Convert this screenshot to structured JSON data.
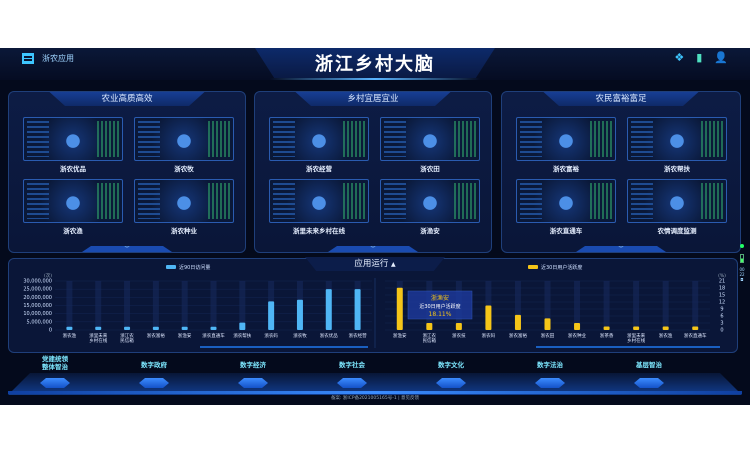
{
  "header": {
    "app_label": "浙农应用",
    "title": "浙江乡村大脑",
    "icons": [
      "network-icon",
      "tablet-icon",
      "user-icon"
    ]
  },
  "panels": [
    {
      "title": "农业高质高效",
      "cards": [
        "浙农优品",
        "浙农牧",
        "浙农渔",
        "浙农种业"
      ]
    },
    {
      "title": "乡村宜居宜业",
      "cards": [
        "浙农经营",
        "浙农田",
        "浙里未来乡村在线",
        "浙渔安"
      ]
    },
    {
      "title": "农民富裕富足",
      "cards": [
        "浙农富裕",
        "浙农帮扶",
        "浙农直通车",
        "农情调度监测"
      ]
    }
  ],
  "section_title": "应用运行",
  "chart_data": [
    {
      "type": "bar",
      "legend": "近90日访问量",
      "unit": "(次)",
      "color": "#4fb6f5",
      "ylim": [
        0,
        30000000
      ],
      "yticks": [
        "0",
        "5,000,000",
        "10,000,000",
        "15,000,000",
        "20,000,000",
        "25,000,000",
        "30,000,000"
      ],
      "categories": [
        "浙农渔",
        "浙里未来乡村在线",
        "浙江农民信箱",
        "浙农富裕",
        "浙渔安",
        "浙农直通车",
        "浙农帮扶",
        "浙农码",
        "浙农牧",
        "浙农优品",
        "浙农经营"
      ],
      "values": [
        2000000,
        2000000,
        2000000,
        2000000,
        2000000,
        2000000,
        4500000,
        17500000,
        18500000,
        25000000,
        25000000
      ]
    },
    {
      "type": "bar",
      "legend": "近30日用户活跃度",
      "unit": "(%)",
      "color": "#f5c518",
      "ylim": [
        0,
        21
      ],
      "yticks": [
        "0",
        "3",
        "6",
        "9",
        "12",
        "15",
        "18",
        "21"
      ],
      "categories": [
        "浙渔安",
        "浙江农民信箱",
        "浙农技",
        "浙农码",
        "浙农富裕",
        "浙农田",
        "浙农种业",
        "浙茶香",
        "浙里未来乡村在线",
        "浙农渔",
        "浙农直通车"
      ],
      "values": [
        18.11,
        3,
        3,
        10.5,
        6.5,
        5,
        3,
        1.5,
        1.5,
        1.5,
        1.5
      ],
      "tooltip": {
        "title": "浙渔安",
        "label": "近30日用户活跃度",
        "value": "18.11%"
      }
    }
  ],
  "nav": [
    "党建统领\n整体智治",
    "数字政府",
    "数字经济",
    "数字社会",
    "数字文化",
    "数字法治",
    "基层智治"
  ],
  "footer": "备案: 浙ICP备2021005165号-1  |  意见反馈",
  "side": {
    "a": "00",
    "b": "22"
  }
}
